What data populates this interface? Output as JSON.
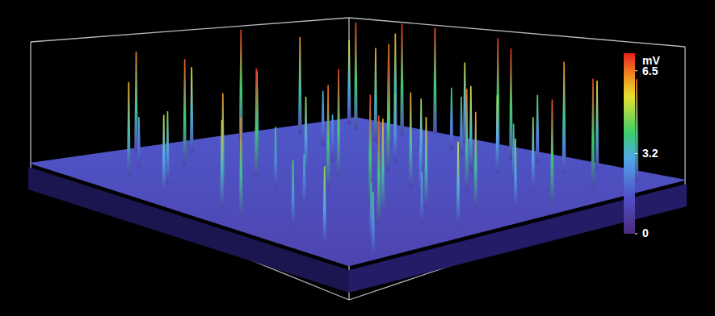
{
  "chart_data": {
    "type": "spike_surface",
    "xlim": [
      0,
      100
    ],
    "ylim": [
      0,
      100
    ],
    "zlim": [
      0,
      7.2
    ],
    "tick_labels": false,
    "baseline": 1.0,
    "x": [
      5,
      8,
      10,
      12,
      15,
      18,
      20,
      22,
      25,
      28,
      30,
      33,
      35,
      38,
      40,
      42,
      45,
      47,
      50,
      52,
      55,
      57,
      60,
      62,
      65,
      67,
      70,
      72,
      75,
      77,
      80,
      82,
      85,
      88,
      90,
      92,
      95,
      97,
      14,
      24,
      34,
      44,
      48,
      58,
      63,
      68,
      74,
      78,
      84,
      86,
      93,
      6,
      16,
      26,
      46,
      66,
      86,
      55,
      37,
      19,
      73,
      91,
      3,
      60,
      41
    ],
    "y": [
      60,
      75,
      40,
      88,
      55,
      30,
      70,
      92,
      45,
      15,
      80,
      60,
      35,
      95,
      20,
      70,
      50,
      85,
      10,
      40,
      65,
      90,
      25,
      55,
      78,
      38,
      12,
      62,
      88,
      45,
      28,
      72,
      52,
      18,
      82,
      40,
      65,
      10,
      20,
      82,
      8,
      32,
      62,
      8,
      92,
      52,
      35,
      95,
      8,
      35,
      92,
      92,
      96,
      98,
      97,
      97,
      97,
      30,
      48,
      12,
      75,
      58,
      30,
      75,
      88
    ],
    "values": [
      7.0,
      6.2,
      5.5,
      6.9,
      4.1,
      6.8,
      3.5,
      7.1,
      5.9,
      4.6,
      6.6,
      3.0,
      7.0,
      5.2,
      6.3,
      4.4,
      6.9,
      3.8,
      5.6,
      6.7,
      4.9,
      7.1,
      3.4,
      6.1,
      5.0,
      7.0,
      4.2,
      6.5,
      3.9,
      5.8,
      6.9,
      4.7,
      6.2,
      3.6,
      7.0,
      5.3,
      6.8,
      4.0,
      3.2,
      6.0,
      5.0,
      3.9,
      7.1,
      6.4,
      4.3,
      3.1,
      6.0,
      5.7,
      4.9,
      3.3,
      6.6,
      5.4,
      6.1,
      6.8,
      7.0,
      6.3,
      5.9,
      2.8,
      4.8,
      6.0,
      3.7,
      4.5,
      6.4,
      5.5,
      4.0
    ],
    "colorbar": {
      "label": "mV",
      "range": [
        0,
        7.2
      ],
      "ticks": [
        0,
        3.2,
        6.5
      ]
    }
  }
}
